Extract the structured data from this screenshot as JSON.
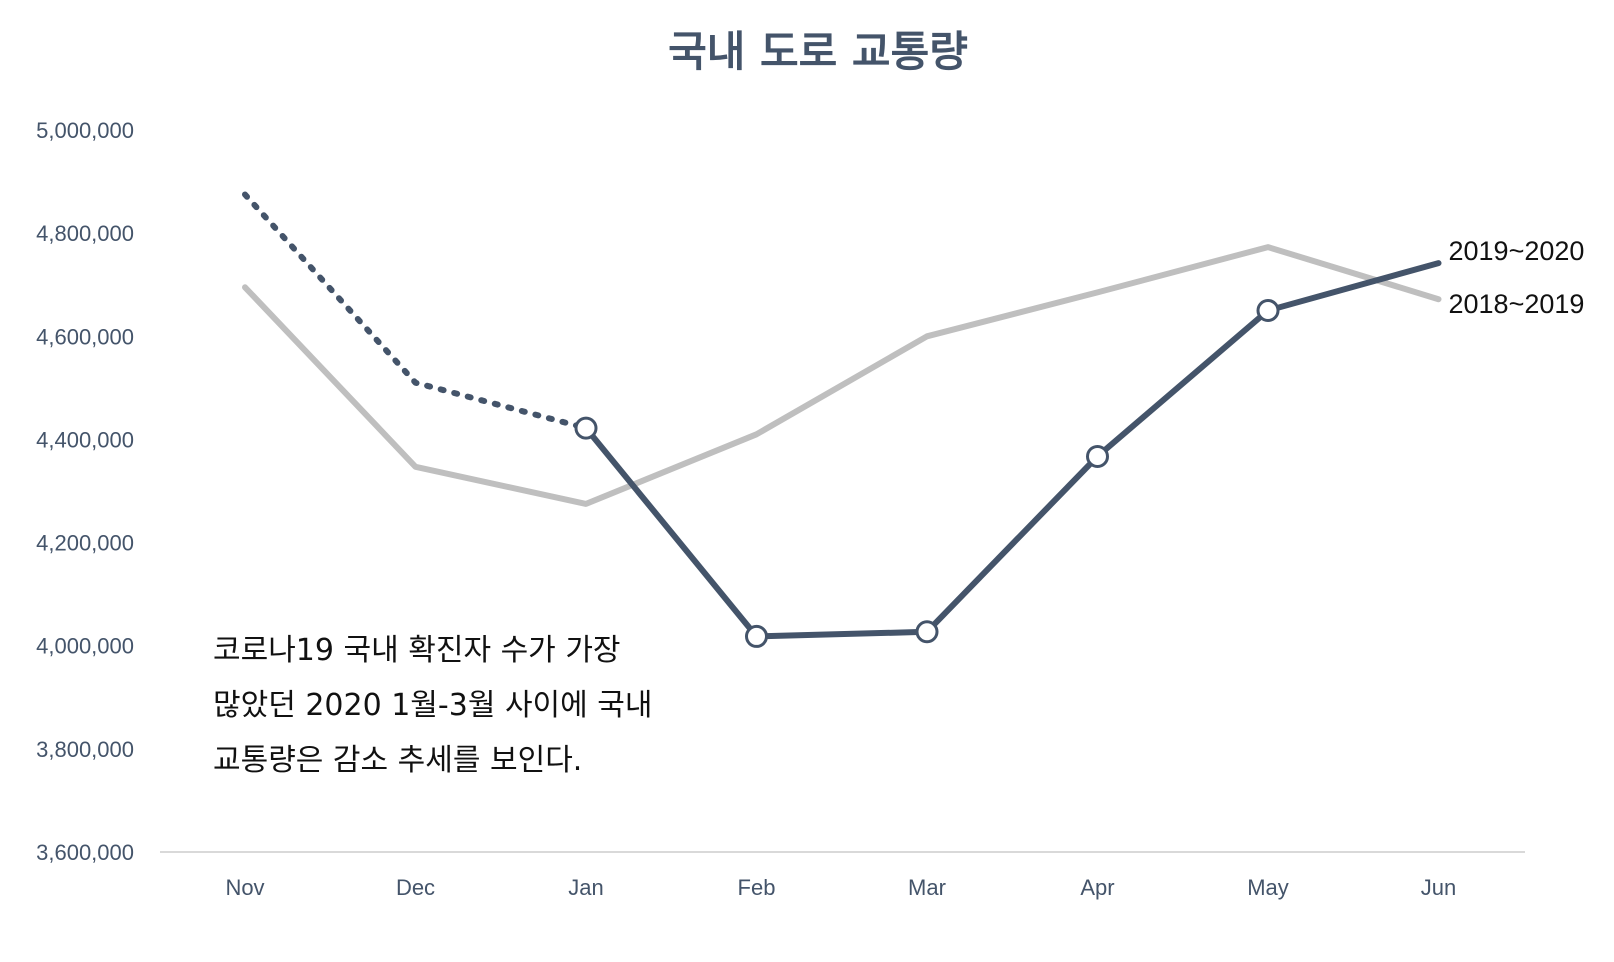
{
  "chart_data": {
    "type": "line",
    "title": "국내 도로 교통량",
    "xlabel": "",
    "ylabel": "",
    "categories": [
      "Nov",
      "Dec",
      "Jan",
      "Feb",
      "Mar",
      "Apr",
      "May",
      "Jun"
    ],
    "yticks": [
      "3,600,000",
      "3,800,000",
      "4,000,000",
      "4,200,000",
      "4,400,000",
      "4,600,000",
      "4,800,000",
      "5,000,000"
    ],
    "ylim": [
      3600000,
      5000000
    ],
    "grid": false,
    "series": [
      {
        "name": "2018~2019",
        "color": "#bfbfbf",
        "values": [
          4695000,
          4347000,
          4275000,
          4410000,
          4600000,
          4685000,
          4773000,
          4672000
        ]
      },
      {
        "name": "2019~2020",
        "color": "#44546a",
        "values": [
          4875000,
          4510000,
          4422000,
          4018000,
          4027000,
          4367000,
          4650000,
          4742000
        ],
        "dotted_segment_to_index": 2,
        "markers_indices": [
          2,
          3,
          4,
          5,
          6
        ]
      }
    ],
    "annotation": [
      "코로나19 국내 확진자 수가 가장",
      "많았던 2020 1월-3월 사이에 국내",
      "교통량은 감소 추세를 보인다."
    ]
  }
}
